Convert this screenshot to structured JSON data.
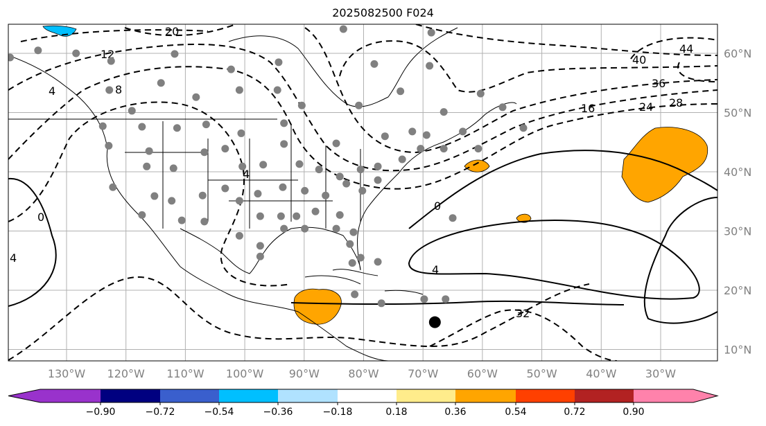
{
  "title": "2025082500 F024",
  "chart_data": {
    "type": "map-contour",
    "projection": "PlateCarree",
    "extent": {
      "lon_min": -140,
      "lon_max": -20.5,
      "lat_min": 8,
      "lat_max": 64.5
    },
    "lon_ticks": [
      {
        "lon": -130,
        "label": "130°W"
      },
      {
        "lon": -120,
        "label": "120°W"
      },
      {
        "lon": -110,
        "label": "110°W"
      },
      {
        "lon": -100,
        "label": "100°W"
      },
      {
        "lon": -90,
        "label": "90°W"
      },
      {
        "lon": -80,
        "label": "80°W"
      },
      {
        "lon": -70,
        "label": "70°W"
      },
      {
        "lon": -60,
        "label": "60°W"
      },
      {
        "lon": -50,
        "label": "50°W"
      },
      {
        "lon": -40,
        "label": "40°W"
      },
      {
        "lon": -30,
        "label": "30°W"
      }
    ],
    "lat_ticks": [
      {
        "lat": 60,
        "label": "60°N"
      },
      {
        "lat": 50,
        "label": "50°N"
      },
      {
        "lat": 40,
        "label": "40°N"
      },
      {
        "lat": 30,
        "label": "30°N"
      },
      {
        "lat": 20,
        "label": "20°N"
      },
      {
        "lat": 10,
        "label": "10°N"
      }
    ],
    "grid": true,
    "contour_labels": [
      "20",
      "12",
      "8",
      "4",
      "0",
      "4",
      "4",
      "0",
      "4",
      "16",
      "24",
      "28",
      "36",
      "40",
      "44",
      "32"
    ],
    "colorbar": {
      "orientation": "horizontal",
      "extend": "both",
      "colors": [
        "#9932cc",
        "#000080",
        "#3a5fcd",
        "#00bfff",
        "#b0e2ff",
        "#ffffff",
        "#ffec8b",
        "#ffa500",
        "#ff4000",
        "#b22222",
        "#ff82ab"
      ],
      "tick_labels": [
        "−0.90",
        "−0.72",
        "−0.54",
        "−0.36",
        "−0.18",
        "0.18",
        "0.36",
        "0.54",
        "0.72",
        "0.90"
      ]
    },
    "stations": [
      [
        -139.5,
        59.3
      ],
      [
        -134.8,
        60.5
      ],
      [
        -128.4,
        60
      ],
      [
        -122.5,
        58.7
      ],
      [
        -111.8,
        59.9
      ],
      [
        -102.3,
        57.3
      ],
      [
        -94.3,
        58.5
      ],
      [
        -83.4,
        64.1
      ],
      [
        -78.2,
        58.2
      ],
      [
        -68.6,
        63.5
      ],
      [
        -68.9,
        57.9
      ],
      [
        -73.8,
        53.6
      ],
      [
        -122.8,
        53.8
      ],
      [
        -114.1,
        55
      ],
      [
        -108.2,
        52.6
      ],
      [
        -100.9,
        53.8
      ],
      [
        -90.4,
        51.2
      ],
      [
        -94.5,
        53.8
      ],
      [
        -80.8,
        51.2
      ],
      [
        -119,
        50.3
      ],
      [
        -111.4,
        47.4
      ],
      [
        -106.5,
        48
      ],
      [
        -100.6,
        46.5
      ],
      [
        -93.4,
        48.2
      ],
      [
        -123.9,
        47.7
      ],
      [
        -117.3,
        47.6
      ],
      [
        -122.9,
        44.4
      ],
      [
        -116.1,
        43.5
      ],
      [
        -112,
        40.6
      ],
      [
        -106.8,
        43.3
      ],
      [
        -103.3,
        43.9
      ],
      [
        -100.4,
        40.9
      ],
      [
        -96.9,
        41.2
      ],
      [
        -93.4,
        44.7
      ],
      [
        -84.6,
        44.8
      ],
      [
        -90.8,
        41.3
      ],
      [
        -87.5,
        40.4
      ],
      [
        -84,
        39.2
      ],
      [
        -80.5,
        40.4
      ],
      [
        -77.6,
        40.9
      ],
      [
        -76.4,
        46
      ],
      [
        -71.8,
        46.8
      ],
      [
        -69.4,
        46.2
      ],
      [
        -66.5,
        50.1
      ],
      [
        -63.3,
        46.8
      ],
      [
        -60.3,
        53.2
      ],
      [
        -56.6,
        50.9
      ],
      [
        -53.1,
        47.4
      ],
      [
        -60.7,
        43.9
      ],
      [
        -66.5,
        43.9
      ],
      [
        -70.4,
        43.9
      ],
      [
        -73.5,
        42.1
      ],
      [
        -77.6,
        38.6
      ],
      [
        -122.2,
        37.4
      ],
      [
        -116.5,
        40.9
      ],
      [
        -115.2,
        35.9
      ],
      [
        -112.3,
        35.1
      ],
      [
        -107.1,
        36
      ],
      [
        -103.3,
        37.2
      ],
      [
        -100.9,
        35.1
      ],
      [
        -97.8,
        36.3
      ],
      [
        -93.6,
        37.4
      ],
      [
        -89.9,
        36.8
      ],
      [
        -86.4,
        36
      ],
      [
        -82.9,
        38
      ],
      [
        -80.2,
        36.8
      ],
      [
        -84,
        32.7
      ],
      [
        -88.1,
        33.3
      ],
      [
        -91.3,
        32.5
      ],
      [
        -93.9,
        32.5
      ],
      [
        -97.4,
        32.5
      ],
      [
        -106.8,
        31.6
      ],
      [
        -110.6,
        31.8
      ],
      [
        -117.3,
        32.7
      ],
      [
        -100.9,
        29.2
      ],
      [
        -97.4,
        27.5
      ],
      [
        -93.4,
        30.4
      ],
      [
        -89.9,
        30.4
      ],
      [
        -84.6,
        30.4
      ],
      [
        -81.7,
        29.8
      ],
      [
        -82.3,
        27.8
      ],
      [
        -80.5,
        25.5
      ],
      [
        -81.9,
        24.6
      ],
      [
        -97.4,
        25.7
      ],
      [
        -77.6,
        24.8
      ],
      [
        -81.5,
        19.3
      ],
      [
        -77,
        17.8
      ],
      [
        -69.8,
        18.5
      ],
      [
        -66.2,
        18.5
      ],
      [
        -65,
        32.2
      ]
    ],
    "marker": [
      -68,
      14.6
    ]
  }
}
